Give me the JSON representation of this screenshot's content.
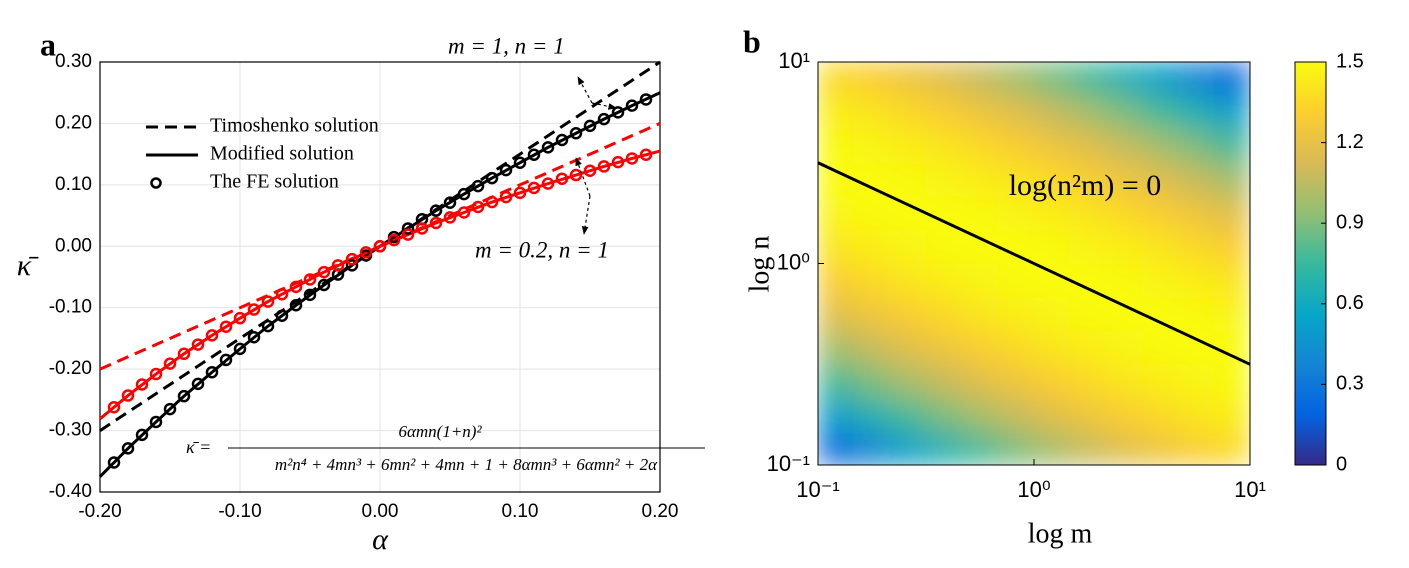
{
  "chart_data": [
    {
      "type": "line",
      "panel_label": "a",
      "xlabel": "α",
      "ylabel": "κ̄",
      "xlim": [
        -0.2,
        0.2
      ],
      "ylim": [
        -0.4,
        0.3
      ],
      "xticks": [
        {
          "value": -0.2,
          "label": "-0.20"
        },
        {
          "value": -0.1,
          "label": "-0.10"
        },
        {
          "value": 0,
          "label": "0.00"
        },
        {
          "value": 0.1,
          "label": "0.10"
        },
        {
          "value": 0.2,
          "label": "0.20"
        }
      ],
      "yticks": [
        {
          "value": 0.3,
          "label": "0.30"
        },
        {
          "value": 0.2,
          "label": "0.20"
        },
        {
          "value": 0.1,
          "label": "0.10"
        },
        {
          "value": 0,
          "label": "0.00"
        },
        {
          "value": -0.1,
          "label": "-0.10"
        },
        {
          "value": -0.2,
          "label": "-0.20"
        },
        {
          "value": -0.3,
          "label": "-0.30"
        },
        {
          "value": -0.4,
          "label": "-0.40"
        }
      ],
      "grid": true,
      "legend": [
        {
          "name": "Timoshenko solution",
          "style": "dashed",
          "color": "#000000"
        },
        {
          "name": "Modified solution",
          "style": "solid",
          "color": "#000000"
        },
        {
          "name": "The FE solution",
          "style": "marker",
          "color": "#000000"
        }
      ],
      "series": [
        {
          "style": "dashed",
          "color": "#000000",
          "x": [
            -0.2,
            0.2
          ],
          "values": [
            -0.3,
            0.3
          ]
        },
        {
          "style": "dashed",
          "color": "#ff0000",
          "x": [
            -0.2,
            0.2
          ],
          "values": [
            -0.2,
            0.2
          ]
        },
        {
          "style": "solid",
          "color": "#000000",
          "x": [
            -0.2,
            -0.18,
            -0.16,
            -0.14,
            -0.12,
            -0.1,
            -0.08,
            -0.06,
            -0.04,
            -0.02,
            0,
            0.02,
            0.04,
            0.06,
            0.08,
            0.1,
            0.12,
            0.14,
            0.16,
            0.18,
            0.2
          ],
          "values": [
            -0.375,
            -0.329,
            -0.286,
            -0.244,
            -0.205,
            -0.167,
            -0.13,
            -0.096,
            -0.063,
            -0.031,
            0,
            0.029,
            0.058,
            0.085,
            0.111,
            0.136,
            0.161,
            0.184,
            0.207,
            0.229,
            0.25
          ]
        },
        {
          "style": "solid",
          "color": "#ff0000",
          "x": [
            -0.2,
            -0.18,
            -0.16,
            -0.14,
            -0.12,
            -0.1,
            -0.08,
            -0.06,
            -0.04,
            -0.02,
            0,
            0.02,
            0.04,
            0.06,
            0.08,
            0.1,
            0.12,
            0.14,
            0.16,
            0.18,
            0.2
          ],
          "values": [
            -0.281,
            -0.243,
            -0.208,
            -0.175,
            -0.145,
            -0.117,
            -0.09,
            -0.066,
            -0.042,
            -0.021,
            0,
            0.019,
            0.038,
            0.055,
            0.072,
            0.087,
            0.102,
            0.116,
            0.13,
            0.143,
            0.155
          ]
        },
        {
          "style": "marker",
          "color": "#000000",
          "x": [
            -0.19,
            -0.18,
            -0.17,
            -0.16,
            -0.15,
            -0.14,
            -0.13,
            -0.12,
            -0.11,
            -0.1,
            -0.09,
            -0.08,
            -0.07,
            -0.06,
            -0.05,
            -0.04,
            -0.03,
            -0.02,
            -0.01,
            0,
            0.01,
            0.02,
            0.03,
            0.04,
            0.05,
            0.06,
            0.07,
            0.08,
            0.09,
            0.1,
            0.11,
            0.12,
            0.13,
            0.14,
            0.15,
            0.16,
            0.17,
            0.18,
            0.19
          ],
          "values": [
            -0.352,
            -0.329,
            -0.307,
            -0.286,
            -0.265,
            -0.244,
            -0.224,
            -0.205,
            -0.185,
            -0.167,
            -0.148,
            -0.13,
            -0.113,
            -0.096,
            -0.079,
            -0.063,
            -0.046,
            -0.031,
            -0.015,
            0,
            0.015,
            0.029,
            0.044,
            0.058,
            0.071,
            0.085,
            0.098,
            0.111,
            0.124,
            0.136,
            0.149,
            0.161,
            0.173,
            0.184,
            0.196,
            0.207,
            0.218,
            0.229,
            0.239
          ]
        },
        {
          "style": "marker",
          "color": "#ff0000",
          "x": [
            -0.19,
            -0.18,
            -0.17,
            -0.16,
            -0.15,
            -0.14,
            -0.13,
            -0.12,
            -0.11,
            -0.1,
            -0.09,
            -0.08,
            -0.07,
            -0.06,
            -0.05,
            -0.04,
            -0.03,
            -0.02,
            -0.01,
            0,
            0.01,
            0.02,
            0.03,
            0.04,
            0.05,
            0.06,
            0.07,
            0.08,
            0.09,
            0.1,
            0.11,
            0.12,
            0.13,
            0.14,
            0.15,
            0.16,
            0.17,
            0.18,
            0.19
          ],
          "values": [
            -0.262,
            -0.243,
            -0.225,
            -0.208,
            -0.191,
            -0.175,
            -0.16,
            -0.145,
            -0.131,
            -0.117,
            -0.103,
            -0.09,
            -0.078,
            -0.066,
            -0.054,
            -0.042,
            -0.031,
            -0.021,
            -0.01,
            0,
            0.01,
            0.019,
            0.029,
            0.038,
            0.047,
            0.055,
            0.064,
            0.072,
            0.08,
            0.087,
            0.095,
            0.102,
            0.11,
            0.116,
            0.123,
            0.13,
            0.137,
            0.143,
            0.149
          ]
        }
      ],
      "annotations": [
        "m = 1,  n = 1",
        "m = 0.2,  n = 1"
      ],
      "formula": {
        "lhs": "κ̄ =",
        "numerator": "6αmn(1+n)²",
        "denominator": "m²n⁴ + 4mn³ + 6mn² + 4mn + 1 + 8αmn³ + 6αmn² + 2α"
      }
    },
    {
      "type": "heatmap",
      "panel_label": "b",
      "xlabel": "log m",
      "ylabel": "log n",
      "xlim": [
        0.1,
        10
      ],
      "ylim": [
        0.1,
        10
      ],
      "log_scale": true,
      "xticks": [
        {
          "value": 0.1,
          "label": "10⁻¹"
        },
        {
          "value": 1,
          "label": "10⁰"
        },
        {
          "value": 10,
          "label": "10¹"
        }
      ],
      "yticks": [
        {
          "value": 0.1,
          "label": "10⁻¹"
        },
        {
          "value": 1,
          "label": "10⁰"
        },
        {
          "value": 10,
          "label": "10¹"
        }
      ],
      "z": [
        [
          0.24,
          0.39,
          0.53,
          0.66,
          0.78,
          0.89,
          0.99,
          1.08,
          1.17,
          1.24,
          1.3,
          1.36
        ],
        [
          0.53,
          0.66,
          0.78,
          0.89,
          0.99,
          1.08,
          1.17,
          1.24,
          1.3,
          1.36,
          1.41,
          1.44
        ],
        [
          0.78,
          0.89,
          0.99,
          1.08,
          1.17,
          1.24,
          1.3,
          1.36,
          1.41,
          1.44,
          1.47,
          1.49
        ],
        [
          0.99,
          1.08,
          1.17,
          1.24,
          1.3,
          1.36,
          1.41,
          1.44,
          1.47,
          1.49,
          1.5,
          1.5
        ],
        [
          1.17,
          1.24,
          1.3,
          1.36,
          1.41,
          1.44,
          1.47,
          1.49,
          1.5,
          1.5,
          1.49,
          1.47
        ],
        [
          1.3,
          1.36,
          1.41,
          1.44,
          1.47,
          1.49,
          1.5,
          1.5,
          1.49,
          1.47,
          1.44,
          1.41
        ],
        [
          1.41,
          1.44,
          1.47,
          1.49,
          1.5,
          1.5,
          1.49,
          1.47,
          1.44,
          1.41,
          1.36,
          1.3
        ],
        [
          1.47,
          1.49,
          1.5,
          1.5,
          1.49,
          1.47,
          1.44,
          1.41,
          1.36,
          1.3,
          1.24,
          1.17
        ],
        [
          1.5,
          1.5,
          1.49,
          1.47,
          1.44,
          1.41,
          1.36,
          1.3,
          1.24,
          1.17,
          1.08,
          0.99
        ],
        [
          1.49,
          1.47,
          1.44,
          1.41,
          1.36,
          1.3,
          1.24,
          1.17,
          1.08,
          0.99,
          0.89,
          0.78
        ],
        [
          1.44,
          1.41,
          1.36,
          1.3,
          1.24,
          1.17,
          1.08,
          0.99,
          0.89,
          0.78,
          0.66,
          0.53
        ],
        [
          1.36,
          1.3,
          1.24,
          1.17,
          1.08,
          0.99,
          0.89,
          0.78,
          0.66,
          0.53,
          0.39,
          0.24
        ]
      ],
      "clim": [
        0,
        1.5
      ],
      "cticks": [
        0,
        0.3,
        0.6,
        0.9,
        1.2,
        1.5
      ],
      "colormap": [
        "#352a87",
        "#0363e1",
        "#1485d4",
        "#06a7c6",
        "#38b99e",
        "#92bf73",
        "#d9ba56",
        "#fcce2e",
        "#f9fb0e"
      ],
      "line": {
        "color": "#000000",
        "x": [
          0.1,
          10
        ],
        "values": [
          3.162,
          0.316
        ]
      },
      "annotation": "log(n²m) = 0"
    }
  ]
}
